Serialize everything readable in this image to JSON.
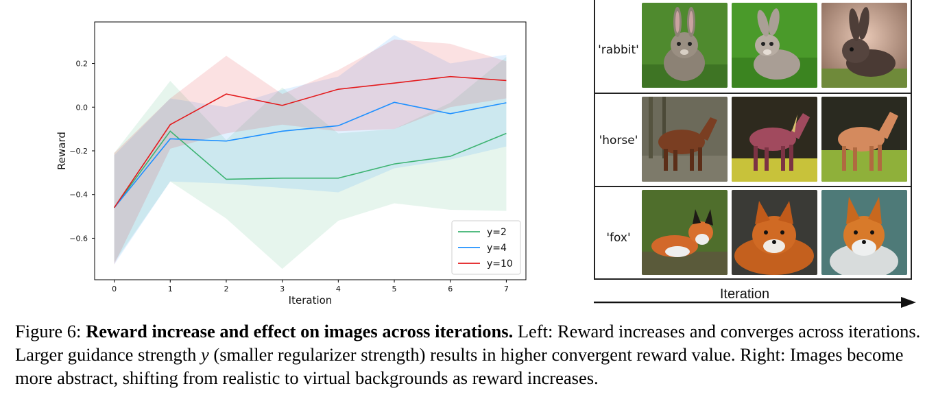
{
  "chart_data": {
    "type": "line",
    "xlabel": "Iteration",
    "ylabel": "Reward",
    "x": [
      0,
      1,
      2,
      3,
      4,
      5,
      6,
      7
    ],
    "xlim": [
      -0.35,
      7.35
    ],
    "ylim": [
      -0.79,
      0.39
    ],
    "xticks": [
      "0",
      "1",
      "2",
      "3",
      "4",
      "5",
      "6",
      "7"
    ],
    "yticks": [
      0.2,
      0.0,
      -0.2,
      -0.4,
      -0.6
    ],
    "ytick_labels": [
      "0.2",
      "0.0",
      "−0.2",
      "−0.4",
      "−0.6"
    ],
    "legend_position": "lower-right",
    "series": [
      {
        "name": "y=2",
        "color": "#3cb371",
        "values": [
          -0.46,
          -0.11,
          -0.33,
          -0.325,
          -0.325,
          -0.26,
          -0.225,
          -0.12
        ],
        "lower": [
          -0.71,
          -0.34,
          -0.51,
          -0.74,
          -0.52,
          -0.44,
          -0.47,
          -0.475
        ],
        "upper": [
          -0.21,
          0.12,
          -0.15,
          0.09,
          -0.12,
          -0.1,
          0.02,
          0.23
        ]
      },
      {
        "name": "y=4",
        "color": "#1e90ff",
        "values": [
          -0.46,
          -0.145,
          -0.155,
          -0.11,
          -0.085,
          0.022,
          -0.03,
          0.02
        ],
        "lower": [
          -0.72,
          -0.34,
          -0.35,
          -0.37,
          -0.39,
          -0.28,
          -0.24,
          -0.18
        ],
        "upper": [
          -0.22,
          0.04,
          0.0,
          0.08,
          0.14,
          0.33,
          0.2,
          0.24
        ]
      },
      {
        "name": "y=10",
        "color": "#e31a1c",
        "values": [
          -0.46,
          -0.08,
          0.06,
          0.008,
          0.082,
          0.11,
          0.14,
          0.122
        ],
        "lower": [
          -0.72,
          -0.19,
          -0.12,
          -0.08,
          -0.11,
          -0.1,
          0.0,
          0.04
        ],
        "upper": [
          -0.21,
          0.04,
          0.235,
          0.06,
          0.17,
          0.31,
          0.29,
          0.21
        ]
      }
    ]
  },
  "image_grid": {
    "axis_label": "Iteration",
    "rows": [
      {
        "label": "'rabbit'",
        "subject": "rabbit"
      },
      {
        "label": "'horse'",
        "subject": "horse"
      },
      {
        "label": "'fox'",
        "subject": "fox"
      }
    ]
  },
  "caption": {
    "prefix": "Figure 6: ",
    "bold": "Reward increase and effect on images across iterations.",
    "text1": " Left: Reward increases and converges across iterations. Larger guidance strength ",
    "var": "y",
    "text2": " (smaller regularizer strength) results in higher convergent reward value. Right: Images become more abstract, shifting from realistic to virtual backgrounds as reward increases."
  }
}
